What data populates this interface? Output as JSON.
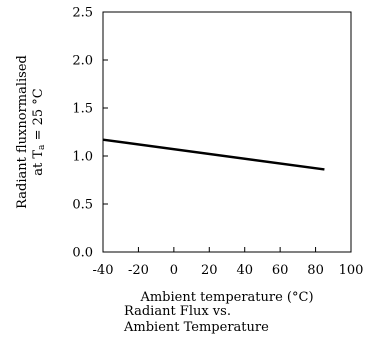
{
  "chart_data": {
    "type": "line",
    "xlabel": "Ambient temperature (°C)",
    "ylabel_line1": "Radiant fluxnormalised",
    "ylabel_line2": "at T",
    "ylabel_sub": "a",
    "ylabel_rest": " = 25 °C",
    "xlim": [
      -40,
      100
    ],
    "ylim": [
      0.0,
      2.5
    ],
    "x_ticks": [
      "-40",
      "-20",
      "0",
      "20",
      "40",
      "60",
      "80",
      "100"
    ],
    "y_ticks": [
      "0.0",
      "0.5",
      "1.0",
      "1.5",
      "2.0",
      "2.5"
    ],
    "grid": false,
    "series": [
      {
        "x": [
          -40,
          85
        ],
        "y": [
          1.17,
          0.86
        ]
      }
    ]
  },
  "caption": {
    "line1": "Radiant Flux vs.",
    "line2": "Ambient Temperature"
  }
}
